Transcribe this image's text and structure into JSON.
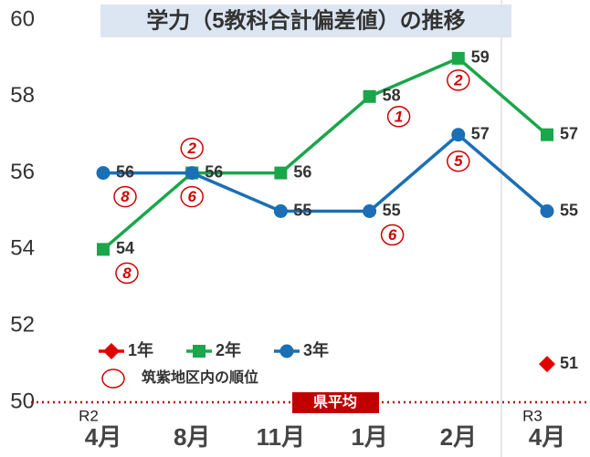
{
  "chart_data": {
    "type": "line",
    "title": "学力（5教科合計偏差値）の推移",
    "categories": [
      "4月",
      "8月",
      "11月",
      "1月",
      "2月",
      "4月"
    ],
    "period_labels": [
      "R2",
      null,
      null,
      null,
      null,
      "R3"
    ],
    "ylim": [
      50,
      60
    ],
    "yticks": [
      50,
      52,
      54,
      56,
      58,
      60
    ],
    "series": [
      {
        "name": "1年",
        "color": "#e00000",
        "marker": "diamond",
        "values": [
          null,
          null,
          null,
          null,
          null,
          51
        ],
        "ranks": [
          null,
          null,
          null,
          null,
          null,
          null
        ]
      },
      {
        "name": "2年",
        "color": "#1aa64a",
        "marker": "square",
        "values": [
          54,
          56,
          56,
          58,
          59,
          57
        ],
        "ranks": [
          8,
          2,
          null,
          1,
          2,
          null
        ]
      },
      {
        "name": "3年",
        "color": "#1a6fb5",
        "marker": "circle",
        "values": [
          56,
          56,
          55,
          55,
          57,
          55
        ],
        "ranks": [
          8,
          6,
          null,
          6,
          5,
          null
        ]
      }
    ],
    "rank_legend": "筑紫地区内の順位",
    "reference_line": {
      "value": 50,
      "label": "県平均",
      "color": "#c00000"
    }
  }
}
